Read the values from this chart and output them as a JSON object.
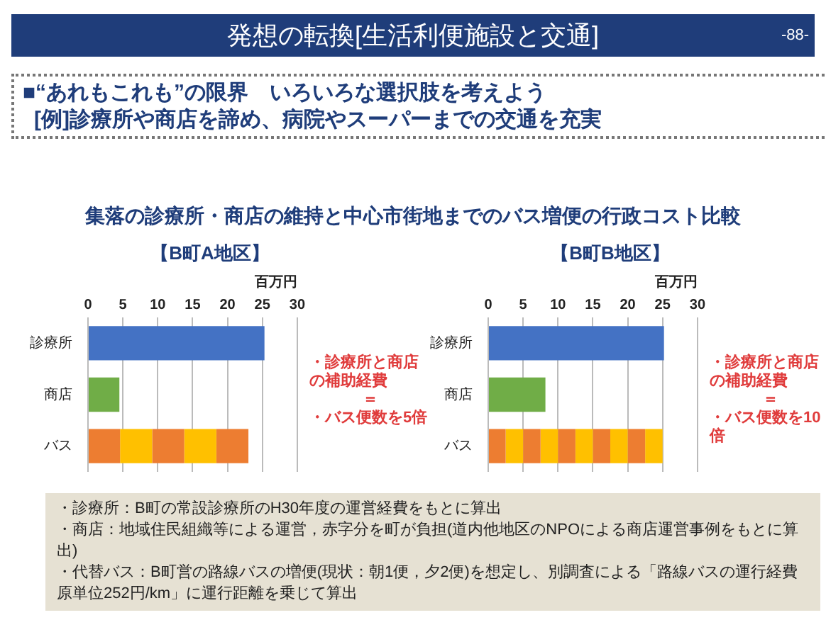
{
  "chart_data": [
    {
      "type": "other",
      "title": "発想の転換[生活利便施設と交通]",
      "annotations": [
        "-88-",
        "■“あれもこれも”の限界　いろいろな選択肢を考えよう",
        "[例]診療所や商店を諦め、病院やスーパーまでの交通を充実",
        "集落の診療所・商店の維持と中心市街地までのバス増便の行政コスト比較"
      ]
    },
    {
      "type": "bar",
      "orientation": "horizontal",
      "stacked": true,
      "title": "【B町A地区】",
      "xlabel": "百万円",
      "categories": [
        "診療所",
        "商店",
        "バス"
      ],
      "xlim": [
        0,
        30
      ],
      "xticks": [
        0,
        5,
        10,
        15,
        20,
        25,
        30
      ],
      "grid": "x",
      "series": [
        {
          "color": "#4472c4",
          "values": [
            25.3,
            null,
            null
          ]
        },
        {
          "color": "#70ad47",
          "values": [
            null,
            4.5,
            null
          ]
        },
        {
          "color": "#ed7d31",
          "values": [
            null,
            null,
            4.6
          ]
        },
        {
          "color": "#ffc000",
          "values": [
            null,
            null,
            4.6
          ]
        },
        {
          "color": "#ed7d31",
          "values": [
            null,
            null,
            4.6
          ]
        },
        {
          "color": "#ffc000",
          "values": [
            null,
            null,
            4.6
          ]
        },
        {
          "color": "#ed7d31",
          "values": [
            null,
            null,
            4.6
          ]
        }
      ],
      "annotations": [
        "・診療所と商店の補助経費",
        "＝",
        "・バス便数を5倍"
      ]
    },
    {
      "type": "bar",
      "orientation": "horizontal",
      "stacked": true,
      "title": "【B町B地区】",
      "xlabel": "百万円",
      "categories": [
        "診療所",
        "商店",
        "バス"
      ],
      "xlim": [
        0,
        30
      ],
      "xticks": [
        0,
        5,
        10,
        15,
        20,
        25,
        30
      ],
      "grid": "x",
      "series": [
        {
          "color": "#4472c4",
          "values": [
            25.2,
            null,
            null
          ]
        },
        {
          "color": "#70ad47",
          "values": [
            null,
            8.2,
            null
          ]
        },
        {
          "color": "#ed7d31",
          "values": [
            null,
            null,
            2.5
          ]
        },
        {
          "color": "#ffc000",
          "values": [
            null,
            null,
            2.5
          ]
        },
        {
          "color": "#ed7d31",
          "values": [
            null,
            null,
            2.5
          ]
        },
        {
          "color": "#ffc000",
          "values": [
            null,
            null,
            2.5
          ]
        },
        {
          "color": "#ed7d31",
          "values": [
            null,
            null,
            2.5
          ]
        },
        {
          "color": "#ffc000",
          "values": [
            null,
            null,
            2.5
          ]
        },
        {
          "color": "#ed7d31",
          "values": [
            null,
            null,
            2.5
          ]
        },
        {
          "color": "#ffc000",
          "values": [
            null,
            null,
            2.5
          ]
        },
        {
          "color": "#ed7d31",
          "values": [
            null,
            null,
            2.5
          ]
        },
        {
          "color": "#ffc000",
          "values": [
            null,
            null,
            2.5
          ]
        }
      ],
      "annotations": [
        "・診療所と商店の補助経費",
        "＝",
        "・バス便数を10倍"
      ]
    },
    {
      "type": "other",
      "annotations": [
        "・診療所：B町の常設診療所のH30年度の運営経費をもとに算出",
        "・商店：地域住民組織等による運営，赤字分を町が負担(道内他地区のNPOによる商店運営事例をもとに算出)",
        "・代替バス：B町営の路線バスの増便(現状：朝1便，夕2便)を想定し、別調査による「路線バスの運行経費原単位252円/km」に運行距離を乗じて算出"
      ]
    }
  ]
}
